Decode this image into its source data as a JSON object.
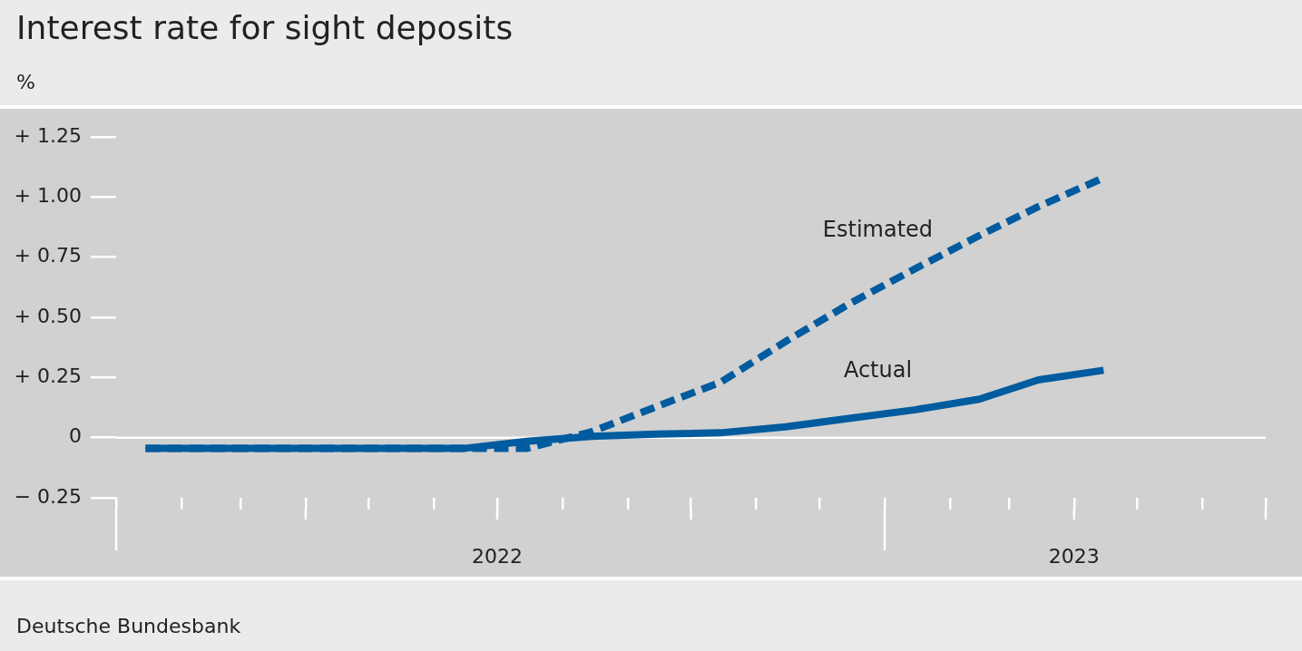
{
  "chart_data": {
    "type": "line",
    "title": "Interest rate for sight deposits",
    "ylabel": "%",
    "annotations": [
      "Deutsche Bundesbank"
    ],
    "x": [
      "2022-01-15",
      "2022-02-15",
      "2022-03-15",
      "2022-04-15",
      "2022-05-15",
      "2022-06-15",
      "2022-07-15",
      "2022-08-15",
      "2022-09-15",
      "2022-10-15",
      "2022-11-15",
      "2022-12-15",
      "2023-01-15",
      "2023-02-15",
      "2023-03-15",
      "2023-04-15"
    ],
    "series": [
      {
        "name": "Estimated",
        "color": "#005b9f",
        "line_style": "dashed",
        "values": [
          -0.045,
          -0.045,
          -0.045,
          -0.045,
          -0.045,
          -0.045,
          -0.045,
          0.025,
          0.13,
          0.23,
          0.4,
          0.555,
          0.7,
          0.84,
          0.96,
          1.08
        ]
      },
      {
        "name": "Actual",
        "color": "#005b9f",
        "line_style": "solid",
        "values": [
          -0.045,
          -0.045,
          -0.045,
          -0.045,
          -0.045,
          -0.045,
          -0.015,
          0.005,
          0.015,
          0.02,
          0.045,
          0.08,
          0.115,
          0.16,
          0.24,
          0.28
        ]
      }
    ],
    "xlim": [
      "2022-01-01",
      "2023-07-01"
    ],
    "xticks": [
      {
        "value": "2022-01-01",
        "label": null
      },
      {
        "value": "2022-02-01",
        "label": null
      },
      {
        "value": "2022-03-01",
        "label": null
      },
      {
        "value": "2022-04-01",
        "label": null
      },
      {
        "value": "2022-05-01",
        "label": null
      },
      {
        "value": "2022-06-01",
        "label": null
      },
      {
        "value": "2022-07-01",
        "label": "2022"
      },
      {
        "value": "2022-08-01",
        "label": null
      },
      {
        "value": "2022-09-01",
        "label": null
      },
      {
        "value": "2022-10-01",
        "label": null
      },
      {
        "value": "2022-11-01",
        "label": null
      },
      {
        "value": "2022-12-01",
        "label": null
      },
      {
        "value": "2023-01-01",
        "label": null
      },
      {
        "value": "2023-02-01",
        "label": null
      },
      {
        "value": "2023-03-01",
        "label": null
      },
      {
        "value": "2023-04-01",
        "label": "2023"
      },
      {
        "value": "2023-05-01",
        "label": null
      },
      {
        "value": "2023-06-01",
        "label": null
      },
      {
        "value": "2023-07-01",
        "label": null
      }
    ],
    "ylim": [
      -0.25,
      1.25
    ],
    "yticks": [
      {
        "value": -0.25,
        "label": "− 0.25"
      },
      0,
      {
        "value": 0.25,
        "label": "+ 0.25"
      },
      {
        "value": 0.5,
        "label": "+ 0.50"
      },
      {
        "value": 0.75,
        "label": "+ 0.75"
      },
      {
        "value": 1.0,
        "label": "+ 1.00"
      },
      {
        "value": 1.25,
        "label": "+ 1.25"
      }
    ],
    "ref_lines": [
      {
        "axis": "y",
        "value": 0,
        "color": "#ffffff"
      }
    ],
    "grid": false,
    "legend": false,
    "marker": "none"
  }
}
